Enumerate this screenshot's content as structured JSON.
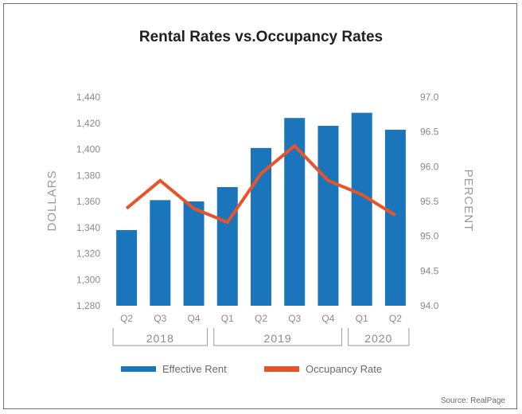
{
  "chart_data": {
    "type": "bar",
    "title": "Rental Rates vs.Occupancy Rates",
    "categories": [
      "Q2",
      "Q3",
      "Q4",
      "Q1",
      "Q2",
      "Q3",
      "Q4",
      "Q1",
      "Q2"
    ],
    "year_groups": [
      {
        "label": "2018",
        "from": 0,
        "to": 2
      },
      {
        "label": "2019",
        "from": 3,
        "to": 6
      },
      {
        "label": "2020",
        "from": 7,
        "to": 8
      }
    ],
    "ylabel_left": "DOLLARS",
    "ylabel_right": "PERCENT",
    "ylim_left": [
      1280,
      1440
    ],
    "ylim_right": [
      94.0,
      97.0
    ],
    "yticks_left": [
      "1,280",
      "1,300",
      "1,320",
      "1,340",
      "1,360",
      "1,380",
      "1,400",
      "1,420",
      "1,440"
    ],
    "yticks_right": [
      "94.0",
      "94.5",
      "95.0",
      "95.5",
      "96.0",
      "96.5",
      "97.0"
    ],
    "grid": false,
    "legend_position": "bottom",
    "series": [
      {
        "name": "Effective Rent",
        "type": "bar",
        "axis": "left",
        "color": "#1b75bb",
        "values": [
          1338,
          1361,
          1360,
          1371,
          1401,
          1424,
          1418,
          1428,
          1415
        ]
      },
      {
        "name": "Occupancy Rate",
        "type": "line",
        "axis": "right",
        "color": "#e8542a",
        "values": [
          95.4,
          95.8,
          95.4,
          95.2,
          95.9,
          96.3,
          95.8,
          95.6,
          95.3
        ]
      }
    ]
  },
  "source": "Source: RealPage"
}
